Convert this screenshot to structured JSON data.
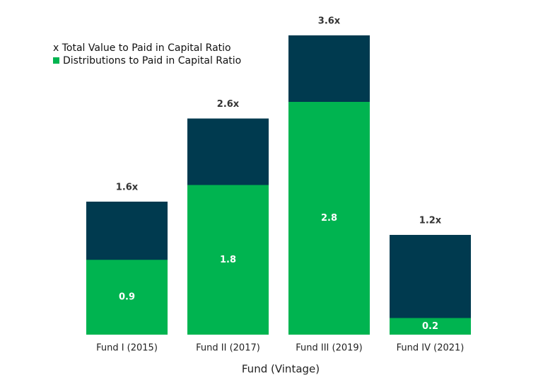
{
  "chart_data": {
    "type": "bar",
    "categories": [
      "Fund I (2015)",
      "Fund II (2017)",
      "Fund III (2019)",
      "Fund IV (2021)"
    ],
    "xlabel": "Fund (Vintage)",
    "series": [
      {
        "name": "x Total Value to Paid in Capital Ratio",
        "color": "#003a4f",
        "values": [
          1.6,
          2.6,
          3.6,
          1.2
        ],
        "value_labels": [
          "1.6x",
          "2.6x",
          "3.6x",
          "1.2x"
        ]
      },
      {
        "name": "Distributions to Paid in Capital Ratio",
        "color": "#00b450",
        "values": [
          0.9,
          1.8,
          2.8,
          0.2
        ]
      }
    ],
    "ylim": [
      0,
      3.6
    ]
  }
}
